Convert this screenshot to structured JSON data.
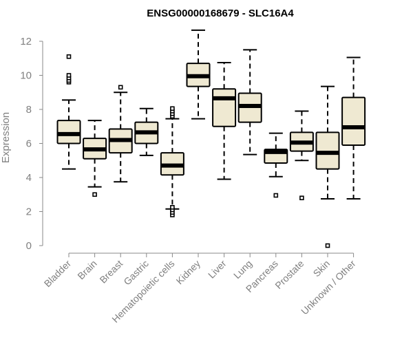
{
  "chart_data": {
    "type": "boxplot",
    "title": "ENSG00000168679 - SLC16A4",
    "xlabel": "",
    "ylabel": "Expression",
    "ylim": [
      0,
      12
    ],
    "yticks": [
      0,
      2,
      4,
      6,
      8,
      10,
      12
    ],
    "ytick_labels": [
      "0",
      "2",
      "4",
      "6",
      "8",
      "10",
      "12"
    ],
    "box_fill": "#efe9d2",
    "line_color": "#000000",
    "categories": [
      "Bladder",
      "Brain",
      "Breast",
      "Gastric",
      "Hematopoietic cells",
      "Kidney",
      "Liver",
      "Lung",
      "Pancreas",
      "Prostate",
      "Skin",
      "Unknown / Other"
    ],
    "boxes": [
      {
        "min": 4.5,
        "q1": 6.0,
        "median": 6.55,
        "q3": 7.35,
        "max": 8.55,
        "outliers": [
          9.6,
          9.7,
          9.85,
          10.0,
          11.1
        ]
      },
      {
        "min": 3.45,
        "q1": 5.1,
        "median": 5.65,
        "q3": 6.3,
        "max": 7.35,
        "outliers": [
          3.0
        ]
      },
      {
        "min": 3.75,
        "q1": 5.45,
        "median": 6.2,
        "q3": 6.85,
        "max": 9.0,
        "outliers": [
          9.3
        ]
      },
      {
        "min": 5.3,
        "q1": 6.0,
        "median": 6.65,
        "q3": 7.25,
        "max": 8.05,
        "outliers": []
      },
      {
        "min": 2.15,
        "q1": 4.15,
        "median": 4.7,
        "q3": 5.45,
        "max": 7.45,
        "outliers": [
          1.8,
          1.95,
          2.1,
          2.25,
          7.6,
          7.75,
          7.9,
          8.05
        ]
      },
      {
        "min": 7.45,
        "q1": 9.35,
        "median": 9.95,
        "q3": 10.7,
        "max": 12.65,
        "outliers": []
      },
      {
        "min": 3.9,
        "q1": 7.0,
        "median": 8.65,
        "q3": 9.2,
        "max": 10.75,
        "outliers": []
      },
      {
        "min": 5.35,
        "q1": 7.25,
        "median": 8.2,
        "q3": 8.95,
        "max": 11.5,
        "outliers": []
      },
      {
        "min": 4.05,
        "q1": 4.85,
        "median": 5.5,
        "q3": 5.65,
        "max": 6.6,
        "outliers": [
          2.95
        ]
      },
      {
        "min": 5.0,
        "q1": 5.55,
        "median": 6.05,
        "q3": 6.65,
        "max": 7.9,
        "outliers": [
          2.8
        ]
      },
      {
        "min": 2.75,
        "q1": 4.5,
        "median": 5.45,
        "q3": 6.65,
        "max": 9.35,
        "outliers": [
          0.0
        ]
      },
      {
        "min": 2.75,
        "q1": 5.9,
        "median": 6.95,
        "q3": 8.7,
        "max": 11.05,
        "outliers": []
      }
    ]
  }
}
